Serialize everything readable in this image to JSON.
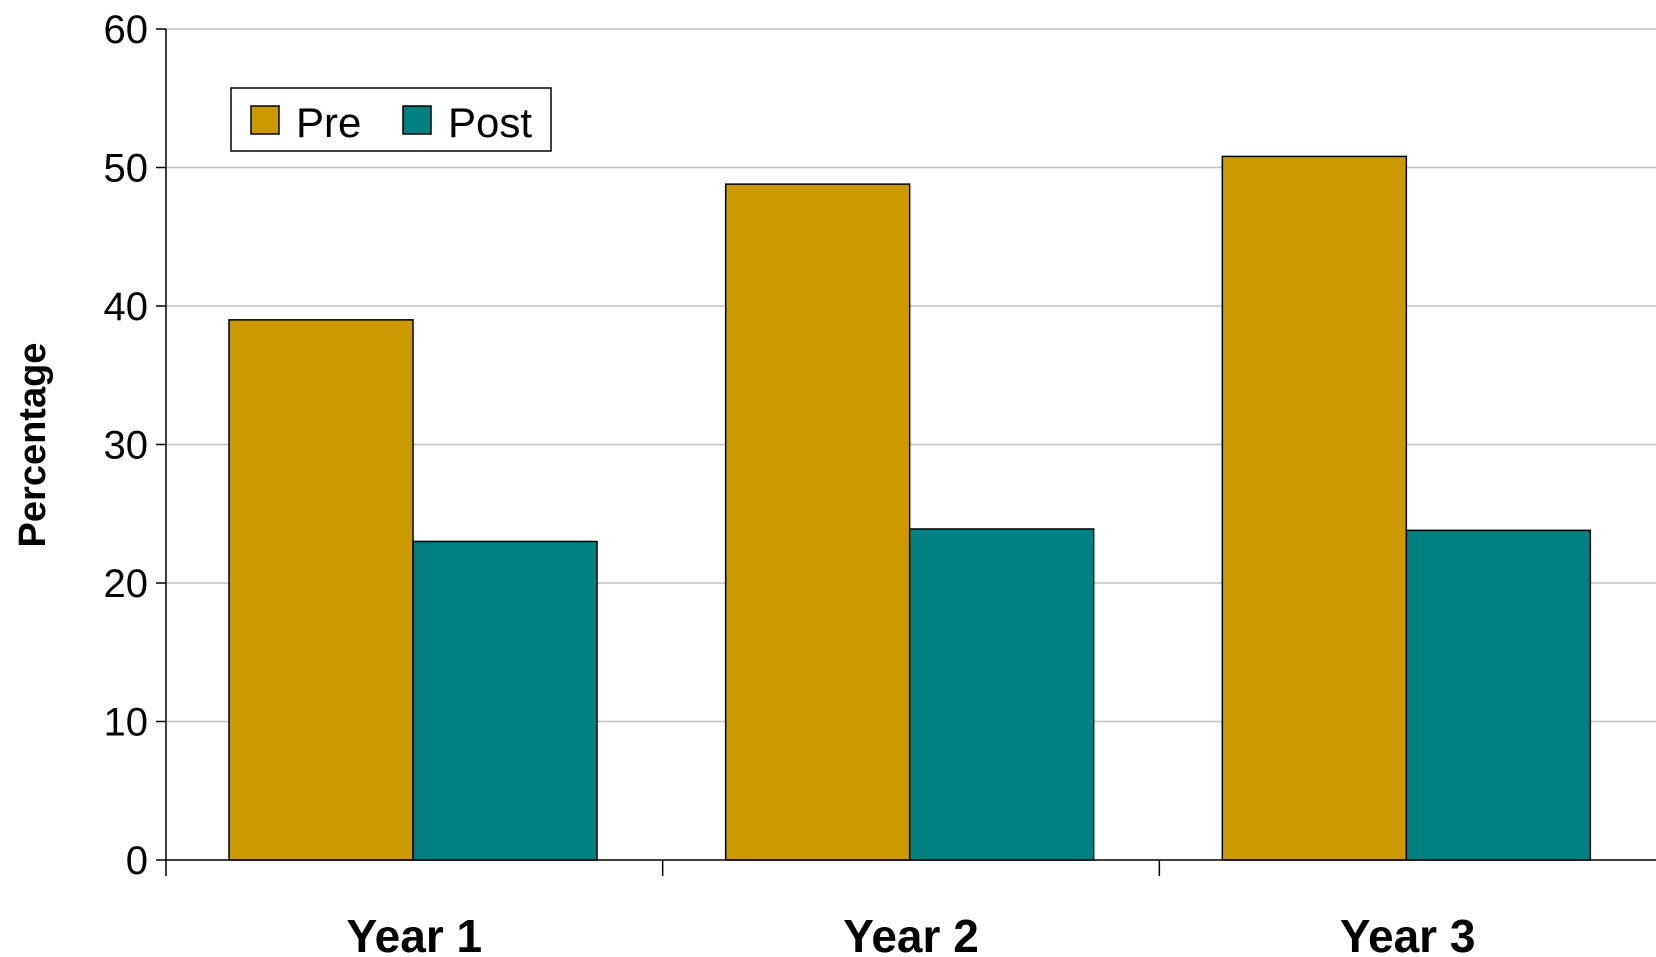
{
  "chart_data": {
    "type": "bar",
    "categories": [
      "Year 1",
      "Year 2",
      "Year 3"
    ],
    "series": [
      {
        "name": "Pre",
        "values": [
          39,
          48.8,
          50.8
        ],
        "color": "#CC9900"
      },
      {
        "name": "Post",
        "values": [
          23,
          23.9,
          23.8
        ],
        "color": "#008080"
      }
    ],
    "title": "",
    "xlabel": "",
    "ylabel": "Percentage",
    "ylim": [
      0,
      60
    ],
    "yticks": [
      0,
      10,
      20,
      30,
      40,
      50,
      60
    ],
    "grid": true,
    "legend_position": "top-left"
  }
}
